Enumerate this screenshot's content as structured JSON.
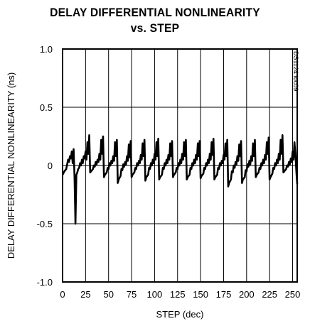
{
  "chart_data": {
    "type": "line",
    "title_line1": "DELAY DIFFERENTIAL NONLINEARITY",
    "title_line2": "vs. STEP",
    "xlabel": "STEP (dec)",
    "ylabel": "DELAY DIFFERENTIAL NONLINEARITY (ns)",
    "figure_tag": "DS1124 toc09",
    "xlim": [
      0,
      255
    ],
    "ylim": [
      -1.0,
      1.0
    ],
    "x_ticks": [
      0,
      25,
      50,
      75,
      100,
      125,
      150,
      175,
      200,
      225,
      250
    ],
    "x_tick_labels": [
      "0",
      "25",
      "50",
      "75",
      "100",
      "125",
      "150",
      "175",
      "200",
      "225",
      "250"
    ],
    "y_ticks": [
      1.0,
      0.5,
      0,
      -0.5,
      -1.0
    ],
    "y_tick_labels": [
      "1.0",
      "0.5",
      "0",
      "-0.5",
      "-1.0"
    ],
    "grid": true,
    "series": [
      {
        "points": [
          [
            0,
            -0.08
          ],
          [
            2,
            -0.05
          ],
          [
            4,
            -0.03
          ],
          [
            6,
            0.05
          ],
          [
            7,
            0.03
          ],
          [
            8,
            0.08
          ],
          [
            9,
            0.06
          ],
          [
            10,
            0.12
          ],
          [
            11,
            0.02
          ],
          [
            12,
            0.14
          ],
          [
            13,
            -0.1
          ],
          [
            14,
            -0.5
          ],
          [
            15,
            -0.08
          ],
          [
            16,
            -0.06
          ],
          [
            17,
            -0.03
          ],
          [
            18,
            -0.02
          ],
          [
            19,
            0.02
          ],
          [
            20,
            0.0
          ],
          [
            21,
            0.05
          ],
          [
            22,
            0.02
          ],
          [
            23,
            0.08
          ],
          [
            24,
            0.06
          ],
          [
            25,
            0.12
          ],
          [
            26,
            0.05
          ],
          [
            27,
            0.2
          ],
          [
            28,
            0.1
          ],
          [
            29,
            0.26
          ],
          [
            30,
            -0.06
          ],
          [
            31,
            -0.05
          ],
          [
            33,
            -0.03
          ],
          [
            34,
            0.0
          ],
          [
            35,
            -0.01
          ],
          [
            36,
            0.03
          ],
          [
            37,
            0.01
          ],
          [
            38,
            0.05
          ],
          [
            39,
            0.03
          ],
          [
            40,
            0.1
          ],
          [
            41,
            0.05
          ],
          [
            42,
            0.22
          ],
          [
            43,
            0.1
          ],
          [
            44,
            0.25
          ],
          [
            45,
            -0.1
          ],
          [
            46,
            -0.08
          ],
          [
            48,
            -0.06
          ],
          [
            49,
            -0.02
          ],
          [
            50,
            -0.03
          ],
          [
            51,
            0.02
          ],
          [
            52,
            0.0
          ],
          [
            53,
            0.04
          ],
          [
            54,
            0.02
          ],
          [
            55,
            0.08
          ],
          [
            56,
            0.04
          ],
          [
            57,
            0.2
          ],
          [
            58,
            0.08
          ],
          [
            59,
            0.22
          ],
          [
            60,
            -0.15
          ],
          [
            61,
            -0.12
          ],
          [
            63,
            -0.09
          ],
          [
            64,
            -0.03
          ],
          [
            65,
            -0.04
          ],
          [
            66,
            0.01
          ],
          [
            67,
            -0.01
          ],
          [
            68,
            0.03
          ],
          [
            69,
            0.01
          ],
          [
            70,
            0.08
          ],
          [
            71,
            0.04
          ],
          [
            72,
            0.18
          ],
          [
            73,
            0.07
          ],
          [
            74,
            0.21
          ],
          [
            75,
            -0.1
          ],
          [
            76,
            -0.08
          ],
          [
            78,
            -0.06
          ],
          [
            79,
            -0.02
          ],
          [
            80,
            -0.03
          ],
          [
            81,
            0.02
          ],
          [
            82,
            0.0
          ],
          [
            83,
            0.04
          ],
          [
            84,
            0.02
          ],
          [
            85,
            0.09
          ],
          [
            86,
            0.05
          ],
          [
            87,
            0.19
          ],
          [
            88,
            0.08
          ],
          [
            89,
            0.22
          ],
          [
            90,
            -0.13
          ],
          [
            91,
            -0.1
          ],
          [
            93,
            -0.08
          ],
          [
            94,
            -0.02
          ],
          [
            95,
            -0.03
          ],
          [
            96,
            0.02
          ],
          [
            97,
            0.0
          ],
          [
            98,
            0.05
          ],
          [
            99,
            0.02
          ],
          [
            100,
            0.1
          ],
          [
            101,
            0.05
          ],
          [
            102,
            0.2
          ],
          [
            103,
            0.08
          ],
          [
            104,
            0.23
          ],
          [
            105,
            -0.12
          ],
          [
            106,
            -0.1
          ],
          [
            108,
            -0.08
          ],
          [
            109,
            -0.02
          ],
          [
            110,
            -0.03
          ],
          [
            111,
            0.02
          ],
          [
            112,
            0.0
          ],
          [
            113,
            0.05
          ],
          [
            114,
            0.02
          ],
          [
            115,
            0.09
          ],
          [
            116,
            0.05
          ],
          [
            117,
            0.19
          ],
          [
            118,
            0.08
          ],
          [
            119,
            0.21
          ],
          [
            120,
            -0.1
          ],
          [
            121,
            -0.08
          ],
          [
            123,
            -0.06
          ],
          [
            124,
            -0.02
          ],
          [
            125,
            -0.03
          ],
          [
            126,
            0.02
          ],
          [
            127,
            0.0
          ],
          [
            128,
            0.05
          ],
          [
            129,
            0.02
          ],
          [
            130,
            0.1
          ],
          [
            131,
            0.05
          ],
          [
            132,
            0.2
          ],
          [
            133,
            0.08
          ],
          [
            134,
            0.22
          ],
          [
            135,
            -0.12
          ],
          [
            136,
            -0.1
          ],
          [
            138,
            -0.08
          ],
          [
            139,
            -0.02
          ],
          [
            140,
            -0.03
          ],
          [
            141,
            0.02
          ],
          [
            142,
            0.0
          ],
          [
            143,
            0.05
          ],
          [
            144,
            0.02
          ],
          [
            145,
            0.09
          ],
          [
            146,
            0.05
          ],
          [
            147,
            0.19
          ],
          [
            148,
            0.08
          ],
          [
            149,
            0.21
          ],
          [
            150,
            -0.11
          ],
          [
            151,
            -0.09
          ],
          [
            153,
            -0.07
          ],
          [
            154,
            -0.02
          ],
          [
            155,
            -0.03
          ],
          [
            156,
            0.02
          ],
          [
            157,
            0.0
          ],
          [
            158,
            0.05
          ],
          [
            159,
            0.02
          ],
          [
            160,
            0.1
          ],
          [
            161,
            0.05
          ],
          [
            162,
            0.2
          ],
          [
            163,
            0.09
          ],
          [
            164,
            0.23
          ],
          [
            165,
            -0.12
          ],
          [
            166,
            -0.1
          ],
          [
            168,
            -0.08
          ],
          [
            169,
            -0.02
          ],
          [
            170,
            -0.03
          ],
          [
            171,
            0.02
          ],
          [
            172,
            0.0
          ],
          [
            173,
            0.04
          ],
          [
            174,
            0.02
          ],
          [
            175,
            0.09
          ],
          [
            176,
            0.05
          ],
          [
            177,
            0.19
          ],
          [
            178,
            0.08
          ],
          [
            179,
            0.22
          ],
          [
            180,
            -0.18
          ],
          [
            181,
            -0.15
          ],
          [
            183,
            -0.12
          ],
          [
            184,
            -0.05
          ],
          [
            185,
            -0.06
          ],
          [
            186,
            0.0
          ],
          [
            187,
            -0.02
          ],
          [
            188,
            0.03
          ],
          [
            189,
            0.01
          ],
          [
            190,
            0.08
          ],
          [
            191,
            0.04
          ],
          [
            192,
            0.18
          ],
          [
            193,
            0.08
          ],
          [
            194,
            0.21
          ],
          [
            195,
            -0.15
          ],
          [
            196,
            -0.12
          ],
          [
            198,
            -0.1
          ],
          [
            199,
            -0.04
          ],
          [
            200,
            -0.05
          ],
          [
            201,
            0.01
          ],
          [
            202,
            -0.01
          ],
          [
            203,
            0.04
          ],
          [
            204,
            0.01
          ],
          [
            205,
            0.08
          ],
          [
            206,
            0.04
          ],
          [
            207,
            0.19
          ],
          [
            208,
            0.08
          ],
          [
            209,
            0.22
          ],
          [
            210,
            -0.1
          ],
          [
            211,
            -0.08
          ],
          [
            213,
            -0.06
          ],
          [
            214,
            -0.02
          ],
          [
            215,
            -0.03
          ],
          [
            216,
            0.02
          ],
          [
            217,
            0.0
          ],
          [
            218,
            0.05
          ],
          [
            219,
            0.02
          ],
          [
            220,
            0.09
          ],
          [
            221,
            0.05
          ],
          [
            222,
            0.2
          ],
          [
            223,
            0.1
          ],
          [
            224,
            0.24
          ],
          [
            225,
            -0.12
          ],
          [
            226,
            -0.1
          ],
          [
            228,
            -0.07
          ],
          [
            229,
            -0.02
          ],
          [
            230,
            -0.03
          ],
          [
            231,
            0.02
          ],
          [
            232,
            0.0
          ],
          [
            233,
            0.05
          ],
          [
            234,
            0.02
          ],
          [
            235,
            0.1
          ],
          [
            236,
            0.05
          ],
          [
            237,
            0.22
          ],
          [
            238,
            0.1
          ],
          [
            239,
            0.26
          ],
          [
            240,
            -0.06
          ],
          [
            241,
            -0.05
          ],
          [
            243,
            -0.03
          ],
          [
            244,
            0.0
          ],
          [
            245,
            -0.01
          ],
          [
            246,
            0.03
          ],
          [
            247,
            0.01
          ],
          [
            248,
            0.06
          ],
          [
            249,
            0.03
          ],
          [
            250,
            0.12
          ],
          [
            251,
            0.05
          ],
          [
            252,
            0.2
          ],
          [
            253,
            0.1
          ],
          [
            254,
            -0.04
          ],
          [
            255,
            -0.16
          ]
        ]
      }
    ]
  }
}
